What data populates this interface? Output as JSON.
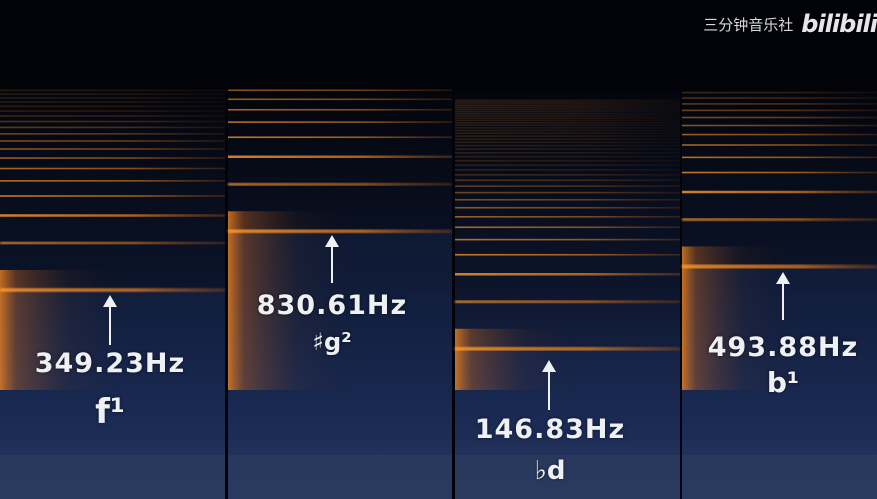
{
  "watermark": {
    "channel": "三分钟音乐社",
    "logo": "bilibili"
  },
  "panels": [
    {
      "frequency_hz": 349.23,
      "freq_label": "349.23Hz",
      "note": "f¹"
    },
    {
      "frequency_hz": 830.61,
      "freq_label": "830.61Hz",
      "note": "♯g²"
    },
    {
      "frequency_hz": 146.83,
      "freq_label": "146.83Hz",
      "note": "♭d"
    },
    {
      "frequency_hz": 493.88,
      "freq_label": "493.88Hz",
      "note": "b¹"
    }
  ],
  "colors": {
    "harmonic": "#ff8a1e",
    "background": "#0a1020",
    "noise": "#1c2c55"
  }
}
